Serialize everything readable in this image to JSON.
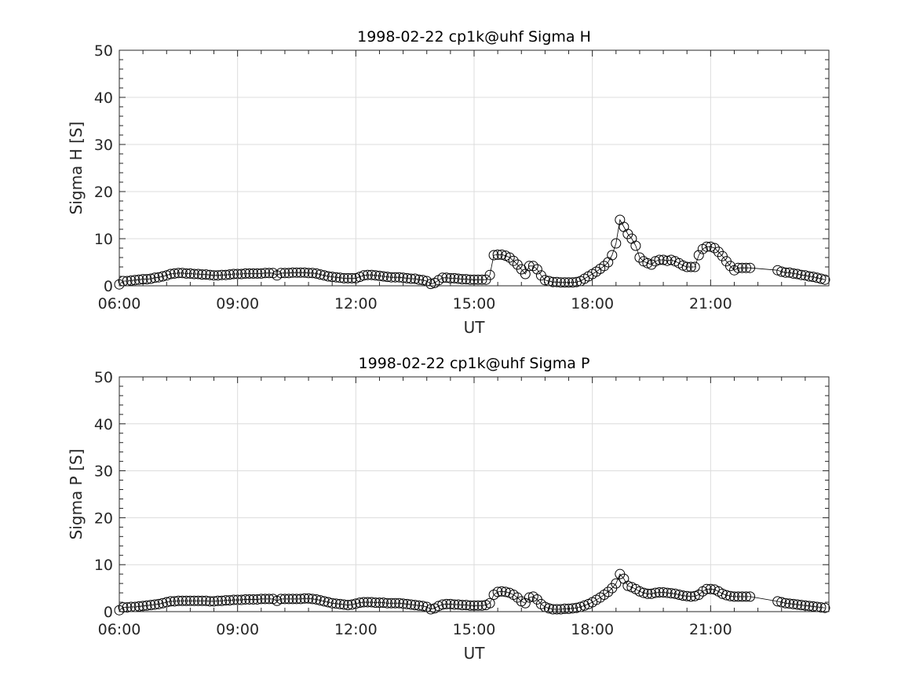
{
  "chart_data": [
    {
      "type": "line",
      "title": "1998-02-22  cp1k@uhf Sigma H",
      "xlabel": "UT",
      "ylabel": "Sigma H [S]",
      "xlim": [
        6,
        24
      ],
      "ylim": [
        0,
        50
      ],
      "xticks": [
        6,
        9,
        12,
        15,
        18,
        21
      ],
      "xtick_labels": [
        "06:00",
        "09:00",
        "12:00",
        "15:00",
        "18:00",
        "21:00"
      ],
      "yticks": [
        0,
        10,
        20,
        30,
        40,
        50
      ],
      "ytick_labels": [
        "0",
        "10",
        "20",
        "30",
        "40",
        "50"
      ],
      "grid": true,
      "marker": "open-circle",
      "segments": [
        {
          "x_start": 6.0,
          "x_step": 0.1,
          "values": [
            0.3,
            1.0,
            1.0,
            1.1,
            1.2,
            1.3,
            1.4,
            1.4,
            1.5,
            1.7,
            1.8,
            2.0,
            2.2,
            2.5,
            2.6,
            2.7,
            2.7,
            2.6,
            2.6,
            2.5,
            2.5,
            2.4,
            2.4,
            2.3,
            2.2,
            2.2,
            2.3,
            2.3,
            2.4,
            2.5,
            2.5,
            2.5,
            2.6,
            2.6,
            2.6,
            2.6,
            2.6,
            2.7,
            2.7,
            2.7,
            2.2,
            2.7,
            2.7,
            2.7,
            2.8,
            2.8,
            2.8,
            2.8,
            2.7,
            2.7,
            2.6,
            2.4,
            2.2,
            2.0,
            1.9,
            1.8,
            1.7,
            1.6,
            1.6,
            1.6,
            1.6,
            1.9,
            2.2,
            2.3,
            2.3,
            2.2,
            2.1,
            2.0,
            1.9,
            1.8,
            1.8,
            1.8,
            1.7,
            1.6,
            1.5,
            1.5,
            1.3,
            1.2,
            1.0,
            0.4,
            0.6,
            1.2,
            1.7,
            1.7,
            1.6,
            1.6,
            1.5,
            1.4,
            1.4,
            1.3,
            1.3,
            1.3,
            1.3,
            1.3,
            2.3,
            6.5,
            6.6,
            6.6,
            6.4,
            6.0,
            5.3,
            4.5,
            3.5,
            2.5,
            4.2,
            4.2,
            3.5,
            2.2,
            1.2,
            1.0,
            0.8,
            0.8,
            0.7,
            0.7,
            0.7,
            0.7,
            0.8,
            1.0,
            1.5,
            2.0,
            2.5,
            3.0,
            3.6,
            4.2,
            5.0,
            6.5,
            9.0,
            14.0,
            12.5,
            11.0,
            10.0,
            8.5,
            6.0,
            5.2,
            4.8,
            4.5,
            5.2,
            5.5,
            5.5,
            5.3,
            5.5,
            5.2,
            4.8,
            4.3,
            4.0,
            4.0,
            4.0,
            6.5,
            7.8,
            8.3,
            8.3,
            8.0,
            7.2,
            6.3,
            5.2,
            4.2,
            3.3,
            3.8,
            3.8,
            3.8,
            3.8
          ]
        },
        {
          "x_start": 22.7,
          "x_step": 0.1,
          "values": [
            3.3,
            3.0,
            2.8,
            2.8,
            2.6,
            2.5,
            2.3,
            2.2,
            2.0,
            1.9,
            1.7,
            1.5,
            1.3
          ]
        }
      ]
    },
    {
      "type": "line",
      "title": "1998-02-22  cp1k@uhf Sigma P",
      "xlabel": "UT",
      "ylabel": "Sigma P [S]",
      "xlim": [
        6,
        24
      ],
      "ylim": [
        0,
        50
      ],
      "xticks": [
        6,
        9,
        12,
        15,
        18,
        21
      ],
      "xtick_labels": [
        "06:00",
        "09:00",
        "12:00",
        "15:00",
        "18:00",
        "21:00"
      ],
      "yticks": [
        0,
        10,
        20,
        30,
        40,
        50
      ],
      "ytick_labels": [
        "0",
        "10",
        "20",
        "30",
        "40",
        "50"
      ],
      "grid": true,
      "marker": "open-circle",
      "segments": [
        {
          "x_start": 6.0,
          "x_step": 0.1,
          "values": [
            0.3,
            0.9,
            0.9,
            1.0,
            1.0,
            1.1,
            1.2,
            1.3,
            1.4,
            1.5,
            1.6,
            1.8,
            2.0,
            2.2,
            2.2,
            2.3,
            2.3,
            2.3,
            2.3,
            2.3,
            2.3,
            2.3,
            2.3,
            2.2,
            2.2,
            2.3,
            2.3,
            2.4,
            2.4,
            2.5,
            2.5,
            2.5,
            2.6,
            2.6,
            2.6,
            2.6,
            2.7,
            2.7,
            2.7,
            2.7,
            2.3,
            2.7,
            2.7,
            2.7,
            2.7,
            2.7,
            2.7,
            2.8,
            2.8,
            2.7,
            2.6,
            2.4,
            2.2,
            2.0,
            1.8,
            1.7,
            1.6,
            1.5,
            1.4,
            1.5,
            1.7,
            1.9,
            2.0,
            2.0,
            2.0,
            1.9,
            1.9,
            1.9,
            1.8,
            1.8,
            1.8,
            1.8,
            1.7,
            1.6,
            1.5,
            1.4,
            1.3,
            1.2,
            1.0,
            0.5,
            0.7,
            1.2,
            1.5,
            1.6,
            1.6,
            1.5,
            1.5,
            1.4,
            1.4,
            1.3,
            1.3,
            1.3,
            1.3,
            1.4,
            1.8,
            3.6,
            4.2,
            4.3,
            4.2,
            4.0,
            3.6,
            3.0,
            2.2,
            1.8,
            3.0,
            3.2,
            2.6,
            1.6,
            1.0,
            0.7,
            0.5,
            0.5,
            0.5,
            0.6,
            0.6,
            0.7,
            0.8,
            1.0,
            1.3,
            1.6,
            2.0,
            2.5,
            3.0,
            3.6,
            4.2,
            5.0,
            6.0,
            8.0,
            7.0,
            5.5,
            5.2,
            4.8,
            4.3,
            4.0,
            3.8,
            3.8,
            4.0,
            4.1,
            4.1,
            4.0,
            3.9,
            3.8,
            3.6,
            3.4,
            3.3,
            3.2,
            3.3,
            3.6,
            4.3,
            4.8,
            4.8,
            4.7,
            4.3,
            3.8,
            3.5,
            3.3,
            3.2,
            3.2,
            3.2,
            3.2,
            3.2
          ]
        },
        {
          "x_start": 22.7,
          "x_step": 0.1,
          "values": [
            2.2,
            2.0,
            1.8,
            1.7,
            1.6,
            1.5,
            1.4,
            1.3,
            1.2,
            1.1,
            1.0,
            0.9,
            0.8
          ]
        }
      ]
    }
  ]
}
